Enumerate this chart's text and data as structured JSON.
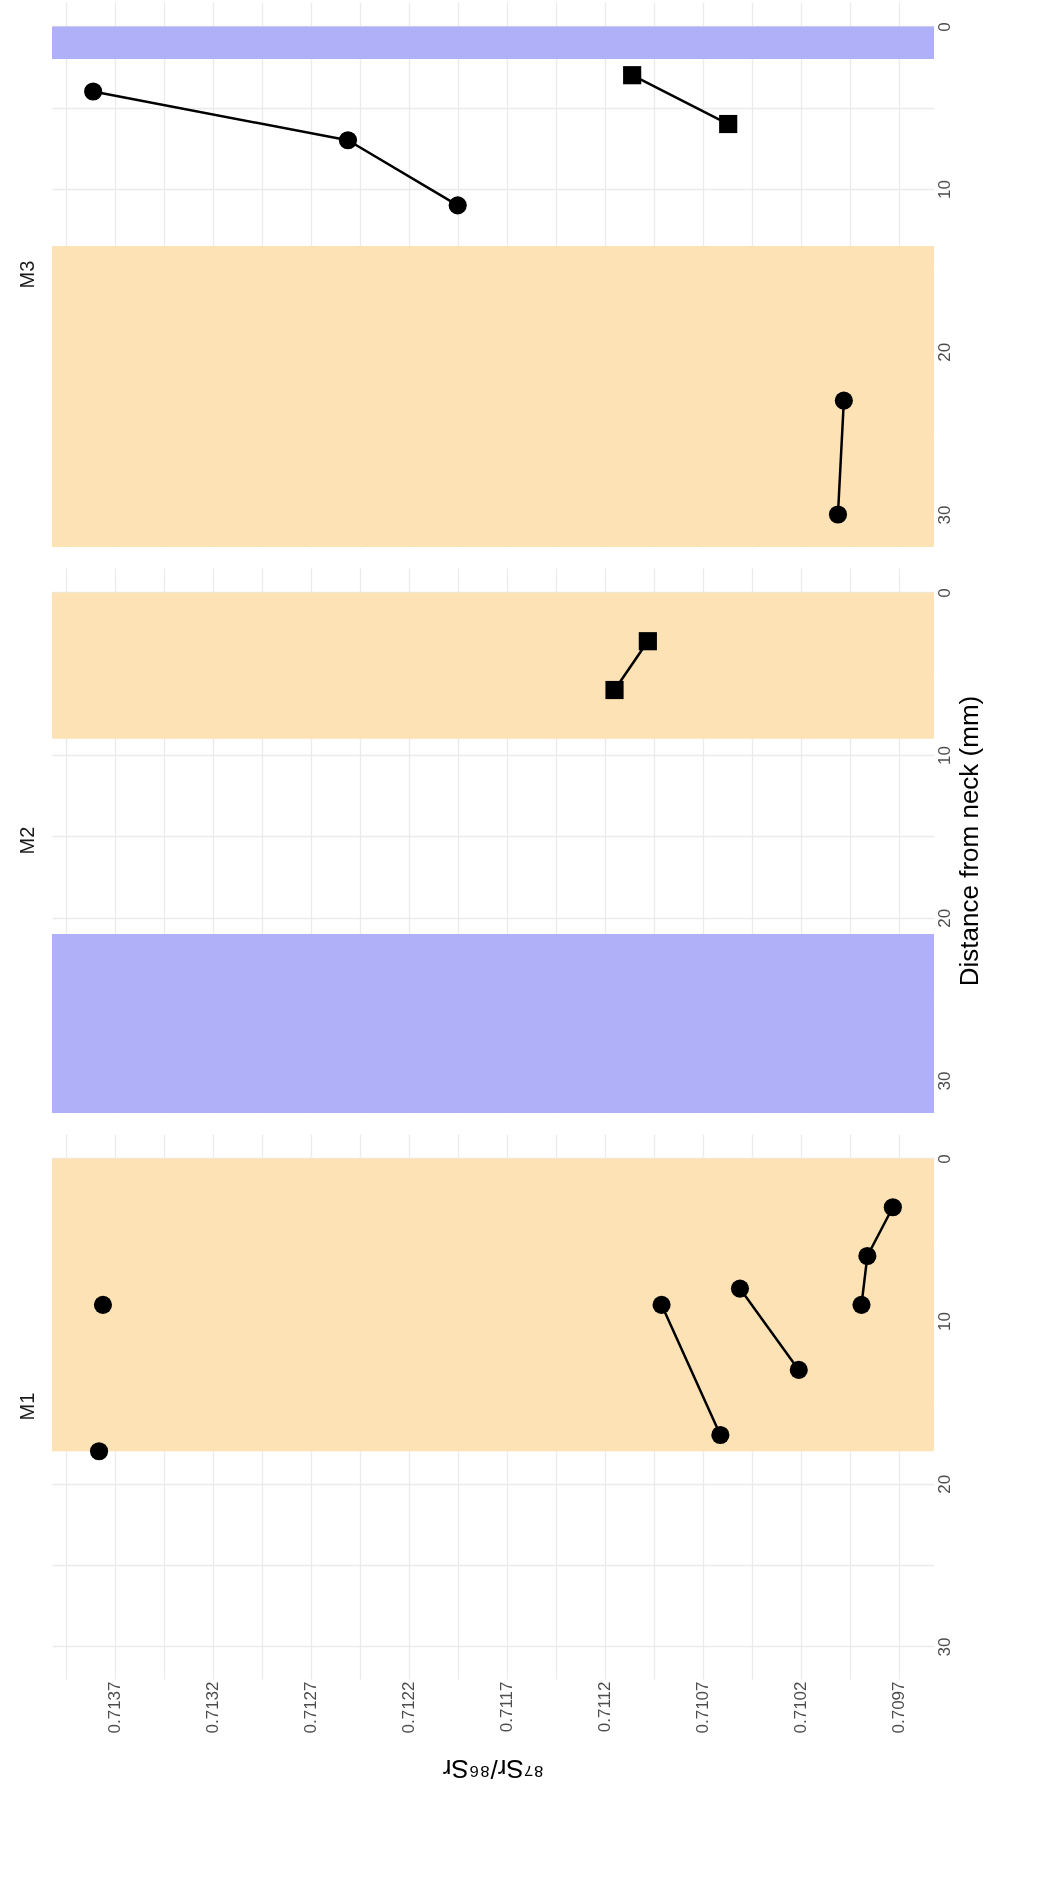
{
  "chart_data": [
    {
      "type": "line",
      "title": "M3",
      "xlim": [
        0.71402,
        0.70952
      ],
      "ylim": [
        32,
        -1.5
      ],
      "tick_labels": "y",
      "xticks": [
        0.7097,
        0.7102,
        0.7107,
        0.7112,
        0.7117,
        0.7122,
        0.7127,
        0.7132,
        0.7137,
        {
          "value": 0.70995,
          "label": null
        },
        {
          "value": 0.71045,
          "label": null
        },
        {
          "value": 0.71095,
          "label": null
        },
        {
          "value": 0.71145,
          "label": null
        },
        {
          "value": 0.71195,
          "label": null
        },
        {
          "value": 0.71245,
          "label": null
        },
        {
          "value": 0.71295,
          "label": null
        },
        {
          "value": 0.71345,
          "label": null
        },
        {
          "value": 0.71395,
          "label": null
        }
      ],
      "yticks": [
        0,
        10,
        20,
        30,
        {
          "value": 5,
          "label": null
        },
        {
          "value": 15,
          "label": null
        },
        {
          "value": 25,
          "label": null
        }
      ],
      "grid": true,
      "line_style": "solid",
      "bands": [
        {
          "axis": "y",
          "from": 0,
          "to": 2,
          "color": "#b0b0f8"
        },
        {
          "axis": "y",
          "from": 13.5,
          "to": 32,
          "color": "#fce2b5"
        }
      ],
      "series": [
        {
          "marker": "circle",
          "color": "#000000",
          "x": [
            0.71381,
            0.71251,
            0.71195
          ],
          "values": [
            4,
            7,
            11
          ]
        },
        {
          "marker": "square",
          "color": "#000000",
          "x": [
            0.71106,
            0.71057
          ],
          "values": [
            3,
            6
          ]
        },
        {
          "marker": "circle",
          "color": "#000000",
          "x": [
            0.70998,
            0.71001
          ],
          "values": [
            23,
            30
          ]
        }
      ]
    },
    {
      "type": "line",
      "title": "M2",
      "ylabel": "Distance from neck (mm)",
      "xlim": [
        0.71402,
        0.70952
      ],
      "ylim": [
        32,
        -1.5
      ],
      "tick_labels": "y",
      "xticks": [
        0.7097,
        0.7102,
        0.7107,
        0.7112,
        0.7117,
        0.7122,
        0.7127,
        0.7132,
        0.7137,
        {
          "value": 0.70995,
          "label": null
        },
        {
          "value": 0.71045,
          "label": null
        },
        {
          "value": 0.71095,
          "label": null
        },
        {
          "value": 0.71145,
          "label": null
        },
        {
          "value": 0.71195,
          "label": null
        },
        {
          "value": 0.71245,
          "label": null
        },
        {
          "value": 0.71295,
          "label": null
        },
        {
          "value": 0.71345,
          "label": null
        },
        {
          "value": 0.71395,
          "label": null
        }
      ],
      "yticks": [
        0,
        10,
        20,
        30,
        {
          "value": 5,
          "label": null
        },
        {
          "value": 15,
          "label": null
        },
        {
          "value": 25,
          "label": null
        }
      ],
      "grid": true,
      "line_style": "solid",
      "bands": [
        {
          "axis": "y",
          "from": 0,
          "to": 9,
          "color": "#fce2b5"
        },
        {
          "axis": "y",
          "from": 21,
          "to": 32,
          "color": "#b0b0f8"
        }
      ],
      "series": [
        {
          "marker": "square",
          "color": "#000000",
          "x": [
            0.71098,
            0.71115
          ],
          "values": [
            3,
            6
          ]
        }
      ]
    },
    {
      "type": "line",
      "title": "M1",
      "xlabel": "⁸⁷Sr/⁸⁶Sr",
      "xlim": [
        0.71402,
        0.70952
      ],
      "ylim": [
        32,
        -1.5
      ],
      "xticks": [
        0.7097,
        0.7102,
        0.7107,
        0.7112,
        0.7117,
        0.7122,
        0.7127,
        0.7132,
        0.7137,
        {
          "value": 0.70995,
          "label": null
        },
        {
          "value": 0.71045,
          "label": null
        },
        {
          "value": 0.71095,
          "label": null
        },
        {
          "value": 0.71145,
          "label": null
        },
        {
          "value": 0.71195,
          "label": null
        },
        {
          "value": 0.71245,
          "label": null
        },
        {
          "value": 0.71295,
          "label": null
        },
        {
          "value": 0.71345,
          "label": null
        },
        {
          "value": 0.71395,
          "label": null
        }
      ],
      "yticks": [
        0,
        10,
        20,
        30,
        {
          "value": 5,
          "label": null
        },
        {
          "value": 15,
          "label": null
        },
        {
          "value": 25,
          "label": null
        }
      ],
      "grid": true,
      "line_style": "solid",
      "bands": [
        {
          "axis": "y",
          "from": 0,
          "to": 18,
          "color": "#fce2b5"
        }
      ],
      "series": [
        {
          "type": "scatter",
          "marker": "circle",
          "color": "#000000",
          "x": [
            0.71376
          ],
          "values": [
            9
          ]
        },
        {
          "type": "scatter",
          "marker": "circle",
          "color": "#000000",
          "x": [
            0.71378
          ],
          "values": [
            18
          ]
        },
        {
          "marker": "circle",
          "color": "#000000",
          "x": [
            0.71091,
            0.71061
          ],
          "values": [
            9,
            17
          ]
        },
        {
          "marker": "circle",
          "color": "#000000",
          "x": [
            0.71051,
            0.71021
          ],
          "values": [
            8,
            13
          ]
        },
        {
          "marker": "circle",
          "color": "#000000",
          "x": [
            0.70973,
            0.70986,
            0.70989
          ],
          "values": [
            3,
            6,
            9
          ]
        }
      ]
    }
  ]
}
